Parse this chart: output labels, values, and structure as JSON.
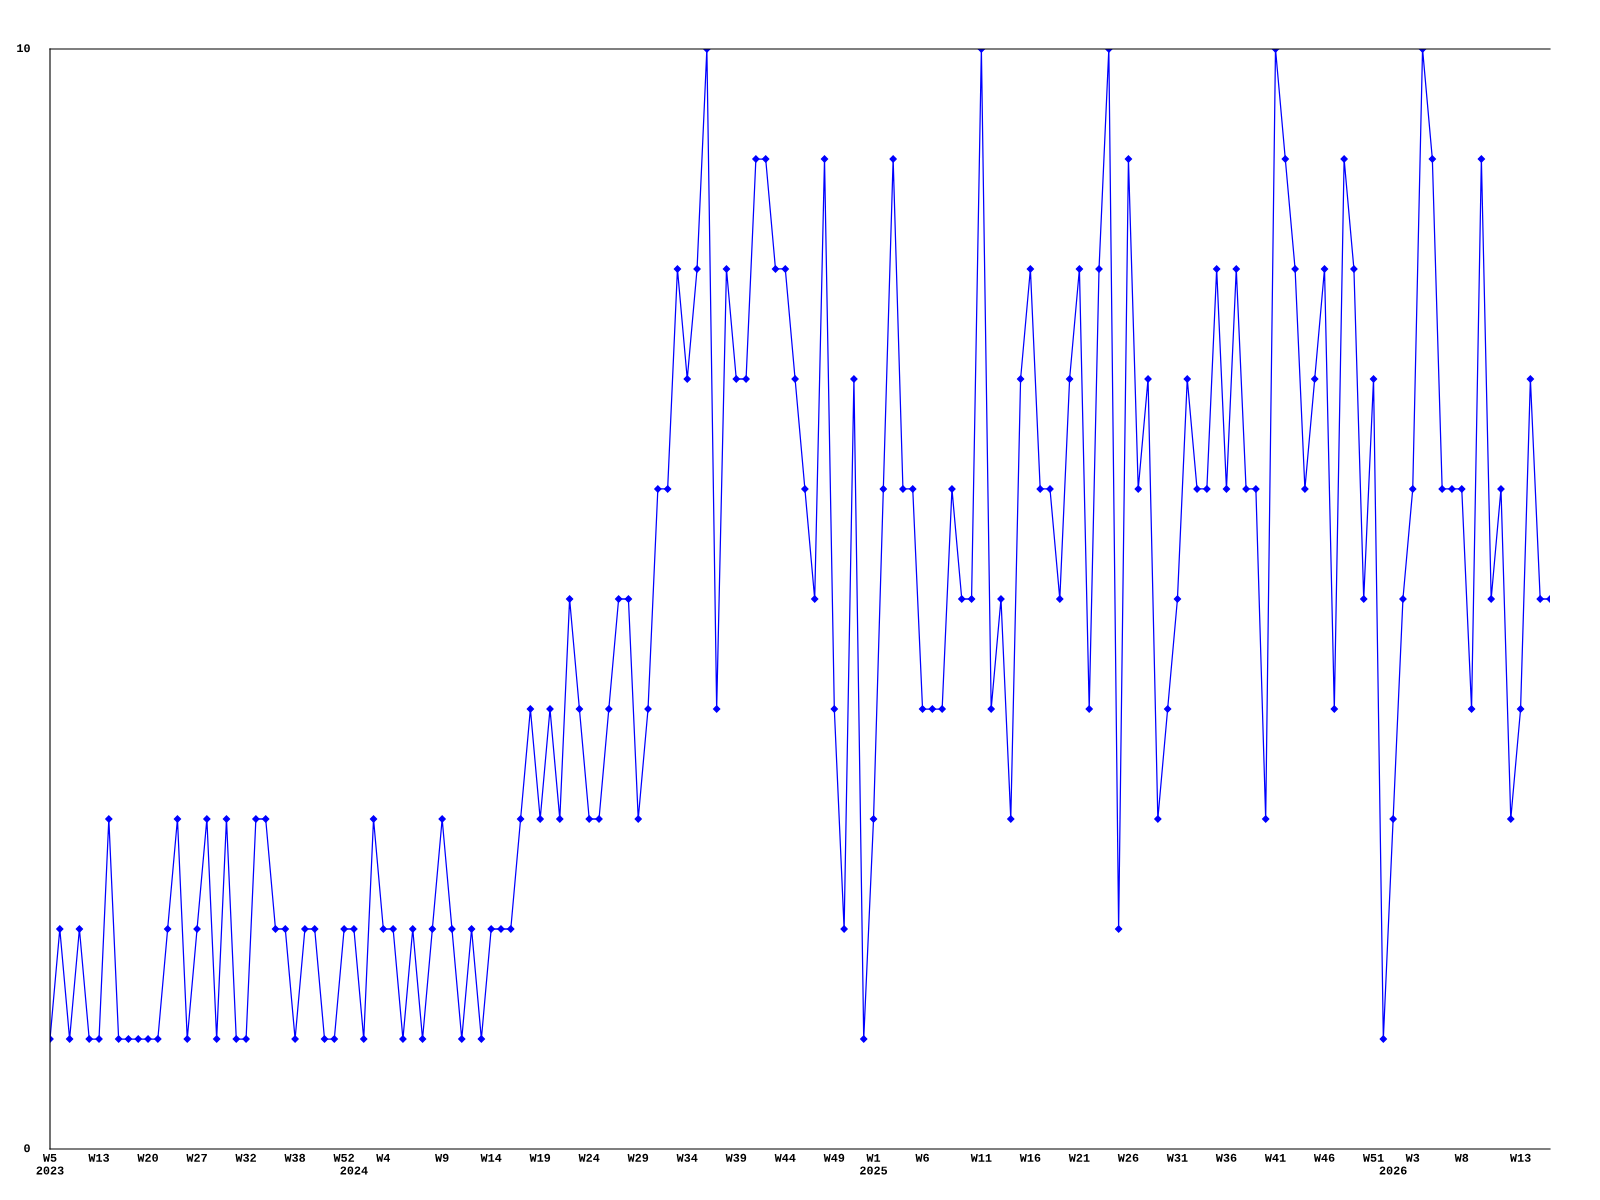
{
  "chart_data": {
    "type": "line",
    "categories": [
      "W5\n2023",
      null,
      null,
      null,
      null,
      "W13",
      null,
      null,
      null,
      null,
      "W20",
      null,
      null,
      null,
      null,
      "W27",
      null,
      null,
      null,
      null,
      "W32",
      null,
      null,
      null,
      null,
      "W38",
      null,
      null,
      null,
      null,
      "W52",
      "\n2024",
      null,
      null,
      "W4",
      null,
      null,
      null,
      null,
      null,
      "W9",
      null,
      null,
      null,
      null,
      "W14",
      null,
      null,
      null,
      null,
      "W19",
      null,
      null,
      null,
      null,
      "W24",
      null,
      null,
      null,
      null,
      "W29",
      null,
      null,
      null,
      null,
      "W34",
      null,
      null,
      null,
      null,
      "W39",
      null,
      null,
      null,
      null,
      "W44",
      null,
      null,
      null,
      null,
      "W49",
      null,
      null,
      null,
      "W1\n2025",
      null,
      null,
      null,
      null,
      "W6",
      null,
      null,
      null,
      null,
      null,
      "W11",
      null,
      null,
      null,
      null,
      "W16",
      null,
      null,
      null,
      null,
      "W21",
      null,
      null,
      null,
      null,
      "W26",
      null,
      null,
      null,
      null,
      "W31",
      null,
      null,
      null,
      null,
      "W36",
      null,
      null,
      null,
      null,
      "W41",
      null,
      null,
      null,
      null,
      "W46",
      null,
      null,
      null,
      null,
      "W51",
      null,
      "\n2026",
      null,
      "W3",
      null,
      null,
      null,
      null,
      "W8",
      null,
      null,
      null,
      null,
      null,
      "W13",
      null,
      null,
      null
    ],
    "series": [
      {
        "color": "#0000ff",
        "values": [
          1,
          2,
          1,
          2,
          1,
          1,
          3,
          1,
          1,
          1,
          1,
          1,
          2,
          3,
          1,
          2,
          3,
          1,
          3,
          1,
          1,
          3,
          3,
          2,
          2,
          1,
          2,
          2,
          1,
          1,
          2,
          2,
          1,
          3,
          2,
          2,
          1,
          2,
          1,
          2,
          3,
          2,
          1,
          2,
          1,
          2,
          2,
          2,
          3,
          4,
          3,
          4,
          3,
          5,
          4,
          3,
          3,
          4,
          5,
          5,
          3,
          4,
          6,
          6,
          8,
          7,
          8,
          10,
          4,
          8,
          7,
          7,
          9,
          9,
          8,
          8,
          7,
          6,
          5,
          9,
          4,
          2,
          7,
          1,
          3,
          6,
          9,
          6,
          6,
          4,
          4,
          4,
          6,
          5,
          5,
          10,
          4,
          5,
          3,
          7,
          8,
          6,
          6,
          5,
          7,
          8,
          4,
          8,
          10,
          2,
          9,
          6,
          7,
          3,
          4,
          5,
          7,
          6,
          6,
          8,
          6,
          8,
          6,
          6,
          3,
          10,
          9,
          8,
          6,
          7,
          8,
          4,
          9,
          8,
          5,
          7,
          1,
          3,
          5,
          6,
          10,
          9,
          6,
          6,
          6,
          4,
          9,
          5,
          6,
          3,
          4,
          7,
          5,
          5
        ]
      }
    ],
    "ylim": [
      0,
      10
    ],
    "yticks": [
      0,
      10
    ],
    "grid": false,
    "legend": false,
    "marker": "diamond",
    "line_style": "solid"
  }
}
